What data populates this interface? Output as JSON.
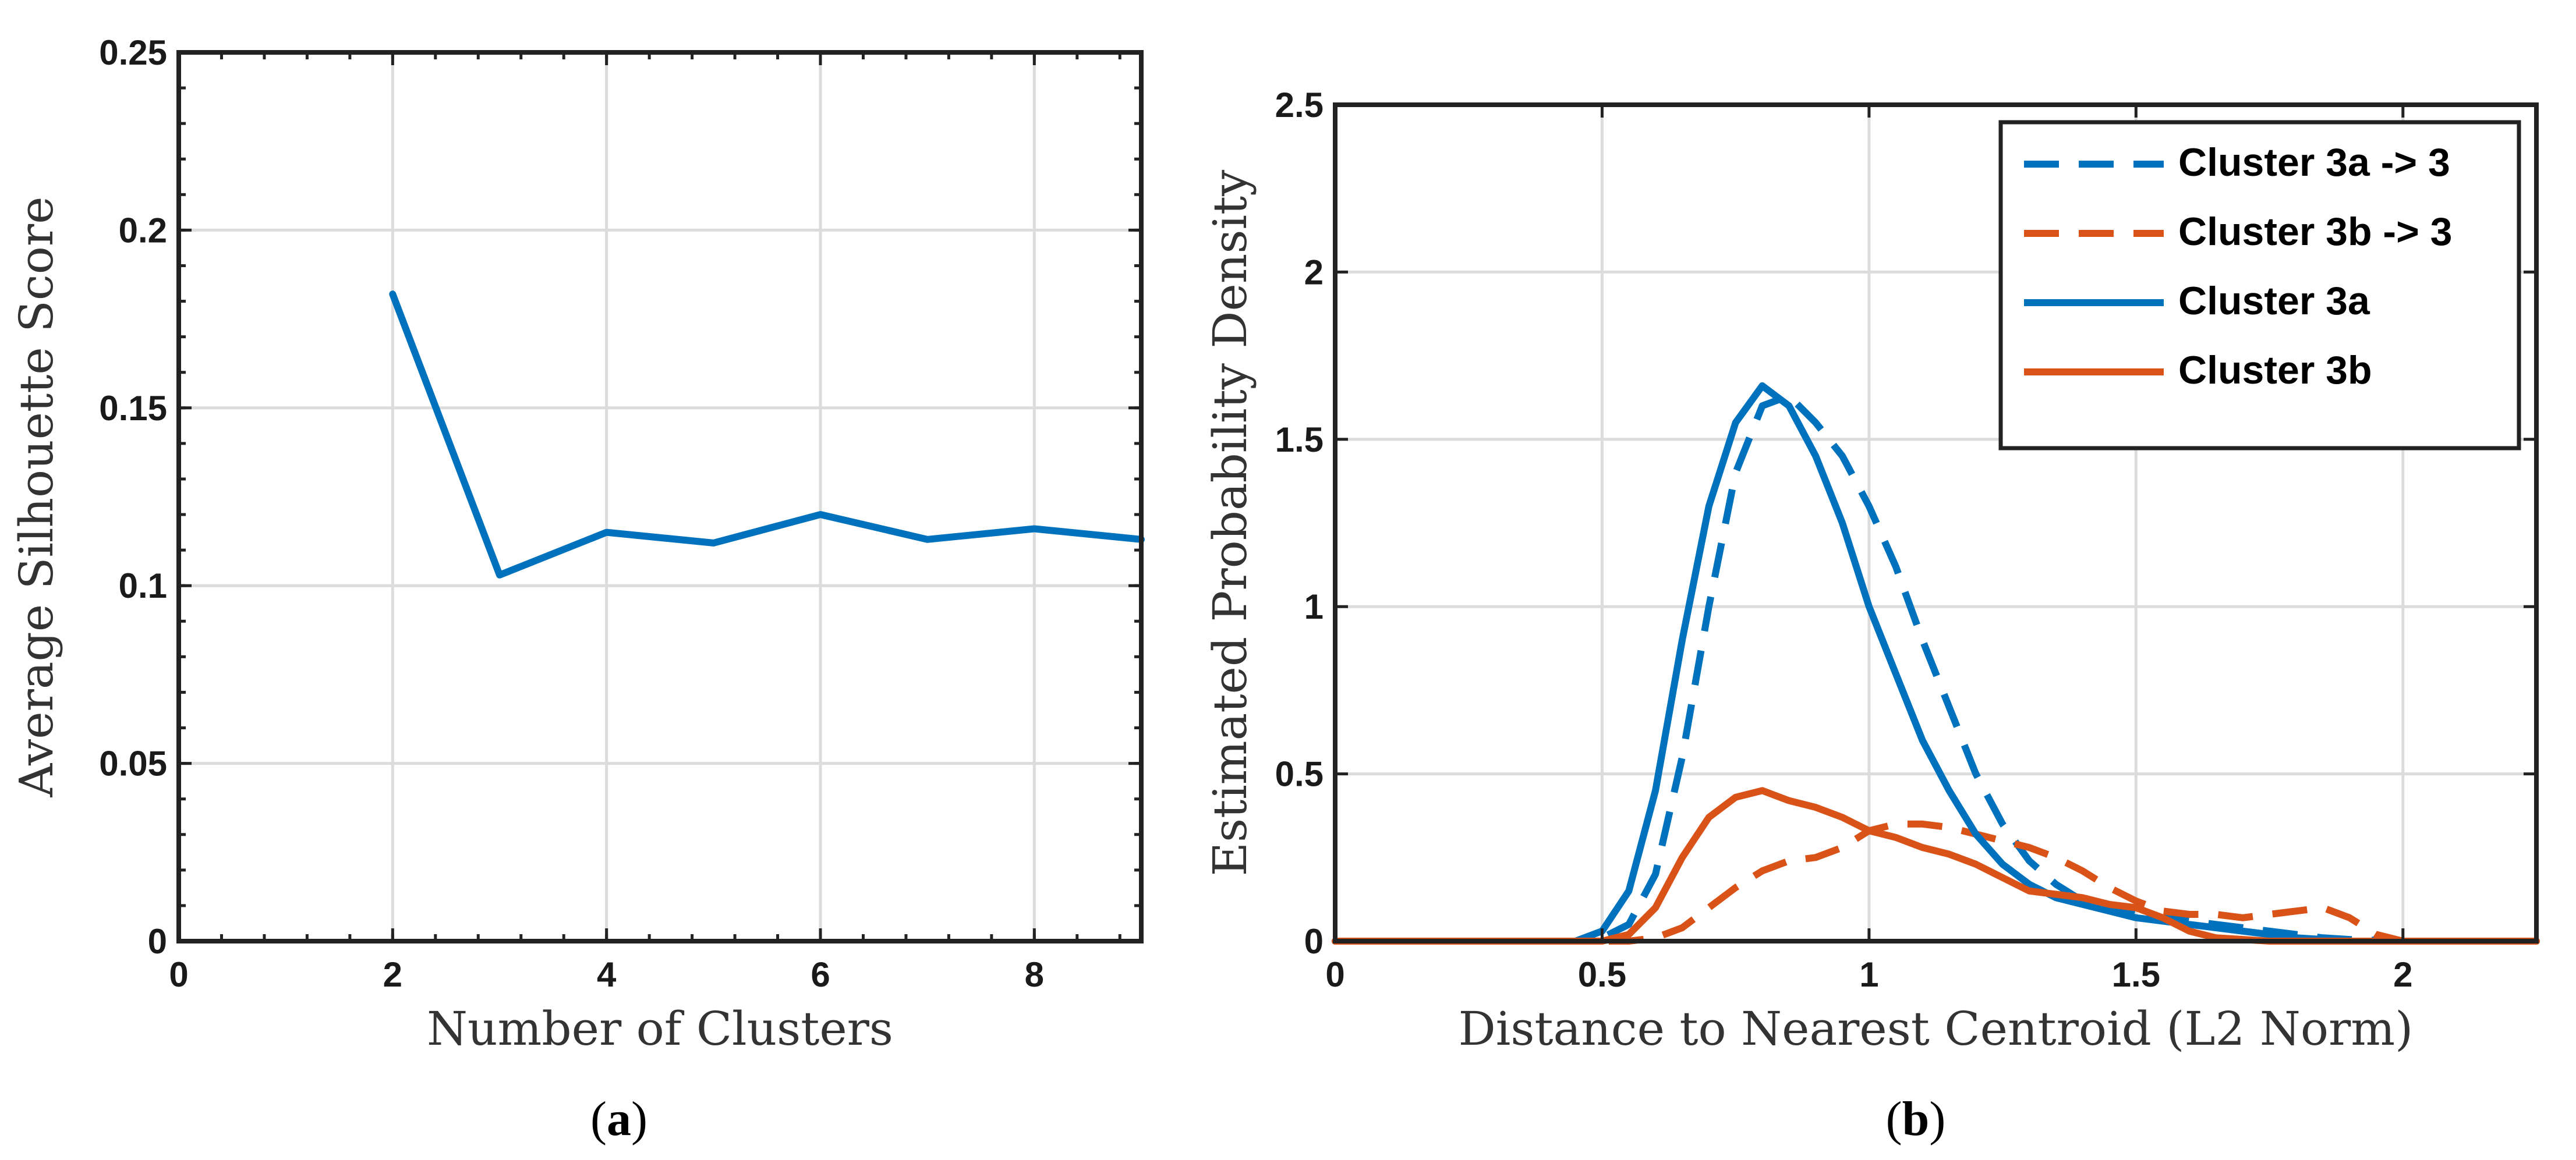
{
  "chart_data": [
    {
      "type": "line",
      "panel": "a",
      "caption_open": "(",
      "caption_letter": "a",
      "caption_close": ")",
      "title": "",
      "xlabel": "Number of Clusters",
      "ylabel": "Average Silhouette Score",
      "xlim": [
        0,
        9
      ],
      "ylim": [
        0,
        0.25
      ],
      "xticks": [
        0,
        2,
        4,
        6,
        8
      ],
      "xtick_labels": [
        "0",
        "2",
        "4",
        "6",
        "8"
      ],
      "yticks": [
        0,
        0.05,
        0.1,
        0.15,
        0.2,
        0.25
      ],
      "ytick_labels": [
        "0",
        "0.05",
        "0.1",
        "0.15",
        "0.2",
        "0.25"
      ],
      "grid": true,
      "series": [
        {
          "name": "Silhouette score",
          "color": "#0072bd",
          "style": "solid",
          "x": [
            2,
            3,
            4,
            5,
            6,
            7,
            8,
            9
          ],
          "y": [
            0.182,
            0.103,
            0.115,
            0.112,
            0.12,
            0.113,
            0.116,
            0.113
          ]
        }
      ]
    },
    {
      "type": "line",
      "panel": "b",
      "caption_open": "(",
      "caption_letter": "b",
      "caption_close": ")",
      "title": "",
      "xlabel": "Distance to Nearest Centroid (L2 Norm)",
      "ylabel": "Estimated Probability Density",
      "xlim": [
        0,
        2.25
      ],
      "ylim": [
        0,
        2.5
      ],
      "xticks": [
        0,
        0.5,
        1,
        1.5,
        2
      ],
      "xtick_labels": [
        "0",
        "0.5",
        "1",
        "1.5",
        "2"
      ],
      "yticks": [
        0,
        0.5,
        1,
        1.5,
        2,
        2.5
      ],
      "ytick_labels": [
        "0",
        "0.5",
        "1",
        "1.5",
        "2",
        "2.5"
      ],
      "grid": true,
      "legend_position": "top-right",
      "series": [
        {
          "name": "Cluster 3a -> 3",
          "color": "#0072bd",
          "style": "dashed",
          "x": [
            0,
            0.45,
            0.5,
            0.55,
            0.6,
            0.65,
            0.7,
            0.75,
            0.8,
            0.85,
            0.9,
            0.95,
            1.0,
            1.05,
            1.1,
            1.15,
            1.2,
            1.25,
            1.3,
            1.35,
            1.4,
            1.45,
            1.5,
            1.55,
            1.6,
            1.65,
            1.7,
            1.75,
            1.8,
            1.85,
            1.9,
            2.0,
            2.25
          ],
          "y": [
            0,
            0,
            0.01,
            0.05,
            0.2,
            0.55,
            1.0,
            1.4,
            1.6,
            1.63,
            1.55,
            1.45,
            1.3,
            1.12,
            0.9,
            0.7,
            0.5,
            0.35,
            0.24,
            0.17,
            0.12,
            0.1,
            0.08,
            0.07,
            0.06,
            0.05,
            0.04,
            0.03,
            0.02,
            0.01,
            0.005,
            0,
            0
          ]
        },
        {
          "name": "Cluster 3b -> 3",
          "color": "#d95319",
          "style": "dashed",
          "x": [
            0,
            0.55,
            0.6,
            0.65,
            0.7,
            0.75,
            0.8,
            0.85,
            0.9,
            0.95,
            1.0,
            1.05,
            1.1,
            1.15,
            1.2,
            1.25,
            1.3,
            1.35,
            1.4,
            1.45,
            1.5,
            1.55,
            1.6,
            1.65,
            1.7,
            1.75,
            1.8,
            1.85,
            1.9,
            1.95,
            2.0,
            2.25
          ],
          "y": [
            0,
            0,
            0.01,
            0.04,
            0.1,
            0.16,
            0.21,
            0.24,
            0.25,
            0.28,
            0.33,
            0.35,
            0.35,
            0.34,
            0.32,
            0.3,
            0.28,
            0.25,
            0.21,
            0.16,
            0.12,
            0.09,
            0.08,
            0.08,
            0.07,
            0.08,
            0.09,
            0.1,
            0.07,
            0.02,
            0,
            0
          ]
        },
        {
          "name": "Cluster 3a",
          "color": "#0072bd",
          "style": "solid",
          "x": [
            0,
            0.45,
            0.5,
            0.55,
            0.6,
            0.65,
            0.7,
            0.75,
            0.8,
            0.85,
            0.9,
            0.95,
            1.0,
            1.05,
            1.1,
            1.15,
            1.2,
            1.25,
            1.3,
            1.35,
            1.4,
            1.45,
            1.5,
            1.55,
            1.6,
            1.65,
            1.7,
            1.75,
            1.8,
            1.85,
            1.9,
            2.25
          ],
          "y": [
            0,
            0,
            0.03,
            0.15,
            0.45,
            0.9,
            1.3,
            1.55,
            1.66,
            1.6,
            1.45,
            1.25,
            1.0,
            0.8,
            0.6,
            0.45,
            0.32,
            0.23,
            0.17,
            0.13,
            0.11,
            0.09,
            0.07,
            0.06,
            0.05,
            0.04,
            0.03,
            0.02,
            0.01,
            0.005,
            0,
            0
          ]
        },
        {
          "name": "Cluster 3b",
          "color": "#d95319",
          "style": "solid",
          "x": [
            0,
            0.5,
            0.55,
            0.6,
            0.65,
            0.7,
            0.75,
            0.8,
            0.85,
            0.9,
            0.95,
            1.0,
            1.05,
            1.1,
            1.15,
            1.2,
            1.25,
            1.3,
            1.35,
            1.4,
            1.45,
            1.5,
            1.55,
            1.6,
            1.65,
            1.7,
            1.75,
            2.25
          ],
          "y": [
            0,
            0,
            0.02,
            0.1,
            0.25,
            0.37,
            0.43,
            0.45,
            0.42,
            0.4,
            0.37,
            0.33,
            0.31,
            0.28,
            0.26,
            0.23,
            0.19,
            0.15,
            0.14,
            0.13,
            0.11,
            0.1,
            0.07,
            0.03,
            0.01,
            0.005,
            0,
            0
          ]
        }
      ]
    }
  ]
}
